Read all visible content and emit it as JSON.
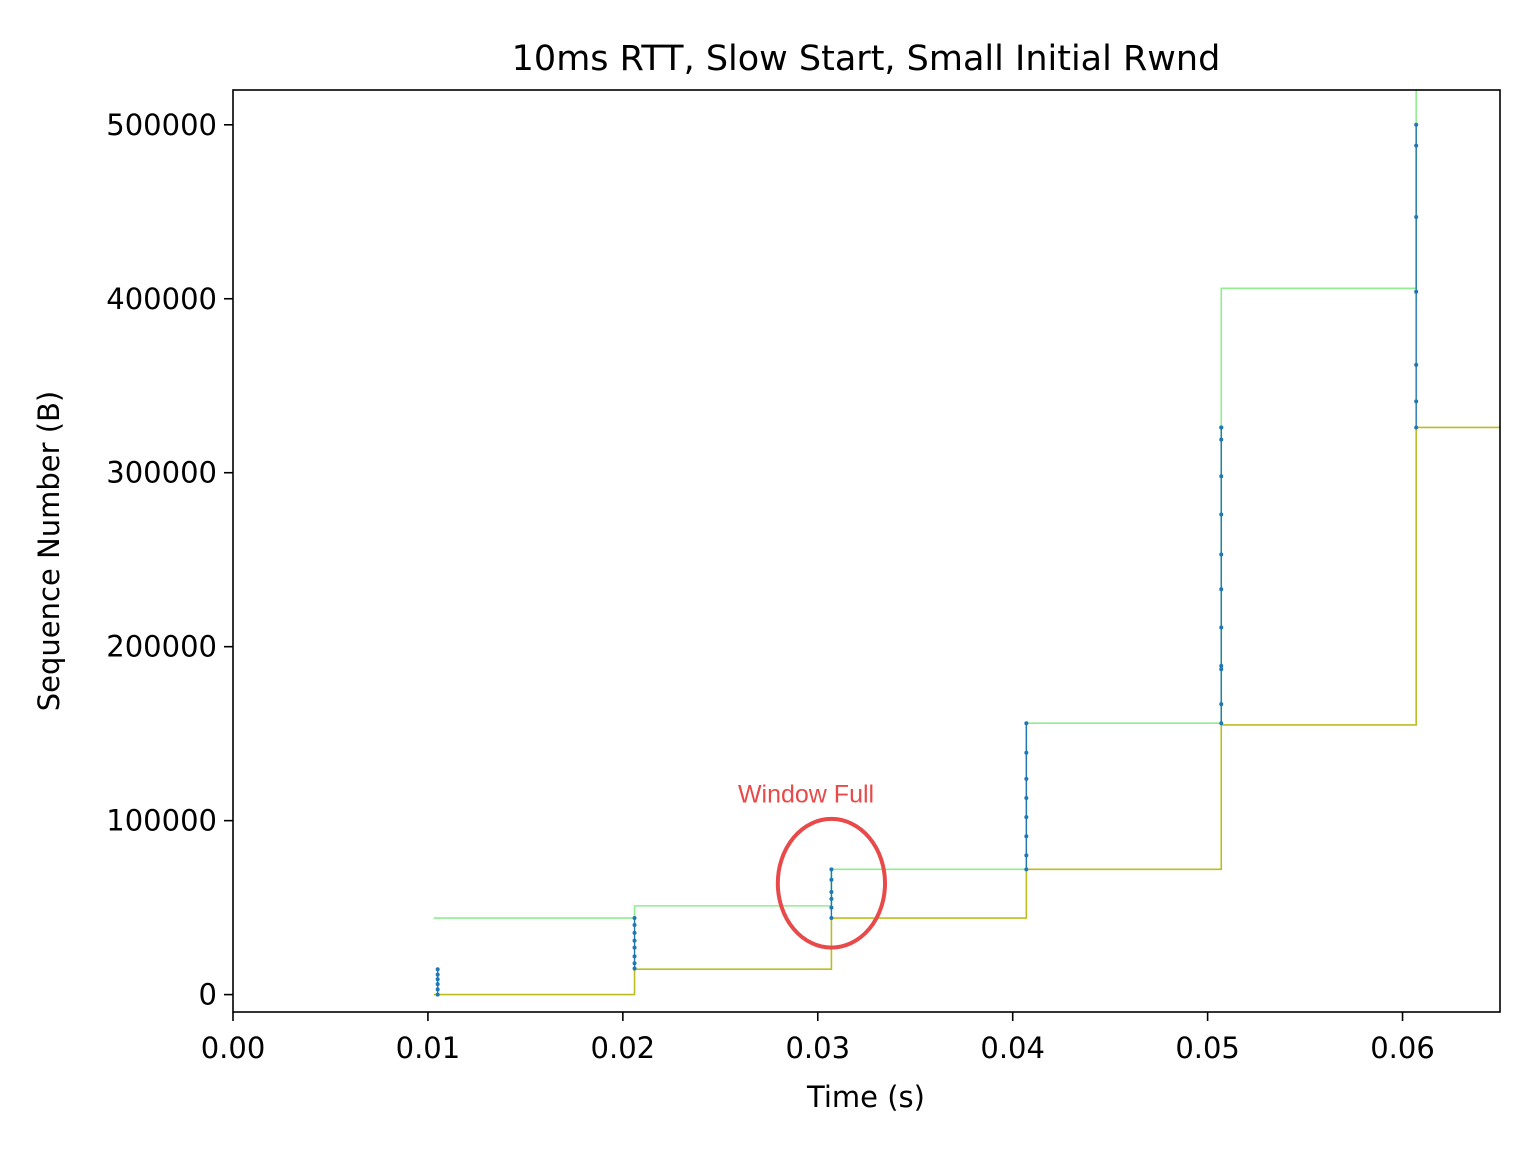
{
  "chart_data": {
    "type": "line",
    "title": "10ms RTT, Slow Start, Small Initial Rwnd",
    "xlabel": "Time (s)",
    "ylabel": "Sequence Number (B)",
    "xlim": [
      0.0,
      0.065
    ],
    "ylim": [
      -10000,
      520000
    ],
    "xticks": [
      0.0,
      0.01,
      0.02,
      0.03,
      0.04,
      0.05,
      0.06
    ],
    "xtick_labels": [
      "0.00",
      "0.01",
      "0.02",
      "0.03",
      "0.04",
      "0.05",
      "0.06"
    ],
    "yticks": [
      0,
      100000,
      200000,
      300000,
      400000,
      500000
    ],
    "ytick_labels": [
      "0",
      "100000",
      "200000",
      "300000",
      "400000",
      "500000"
    ],
    "grid": false,
    "series": [
      {
        "color": "#90ee90",
        "style": "step",
        "x": [
          0.0103,
          0.0206,
          0.0206,
          0.0307,
          0.0307,
          0.0407,
          0.0407,
          0.0507,
          0.0507,
          0.0607,
          0.0607
        ],
        "y": [
          44000,
          44000,
          51000,
          51000,
          72000,
          72000,
          156000,
          156000,
          406000,
          406000,
          520000
        ]
      },
      {
        "color": "#bcbd22",
        "style": "step",
        "x": [
          0.0103,
          0.0206,
          0.0206,
          0.0307,
          0.0307,
          0.0407,
          0.0407,
          0.0507,
          0.0507,
          0.0607,
          0.0607,
          0.065
        ],
        "y": [
          0,
          0,
          14600,
          14600,
          44000,
          44000,
          72000,
          72000,
          155000,
          155000,
          326000,
          326000
        ]
      },
      {
        "color": "#1f77b4",
        "style": "points",
        "x": [
          0.0105,
          0.0105,
          0.0105,
          0.0105,
          0.0105,
          0.0105,
          0.0206,
          0.0206,
          0.0206,
          0.0206,
          0.0206,
          0.0206,
          0.0206,
          0.0206,
          0.0307,
          0.0307,
          0.0307,
          0.0307,
          0.0307,
          0.0307,
          0.0407,
          0.0407,
          0.0407,
          0.0407,
          0.0407,
          0.0407,
          0.0407,
          0.0407,
          0.0507,
          0.0507,
          0.0507,
          0.0507,
          0.0507,
          0.0507,
          0.0507,
          0.0507,
          0.0507,
          0.0507,
          0.0507,
          0.0507,
          0.0607,
          0.0607,
          0.0607,
          0.0607,
          0.0607,
          0.0607,
          0.0607
        ],
        "y": [
          0,
          3000,
          6000,
          8800,
          11500,
          14600,
          15000,
          18000,
          22000,
          27000,
          31000,
          35500,
          40000,
          44000,
          44000,
          50000,
          55000,
          59000,
          66000,
          72000,
          72000,
          80000,
          91000,
          102000,
          113000,
          124000,
          139000,
          156000,
          156000,
          167000,
          187000,
          189000,
          211000,
          233000,
          253000,
          276000,
          298000,
          319000,
          326000,
          326000,
          326000,
          341000,
          362000,
          404000,
          447000,
          488000,
          500000
        ]
      }
    ],
    "annotations": [
      {
        "text": "Window Full",
        "x": 0.0295,
        "y": 115000,
        "color": "#e84a4a"
      }
    ],
    "highlight": {
      "shape": "ellipse",
      "cx": 0.0307,
      "cy": 64000,
      "rx": 0.00275,
      "ry": 37000,
      "color": "#e84a4a"
    }
  }
}
